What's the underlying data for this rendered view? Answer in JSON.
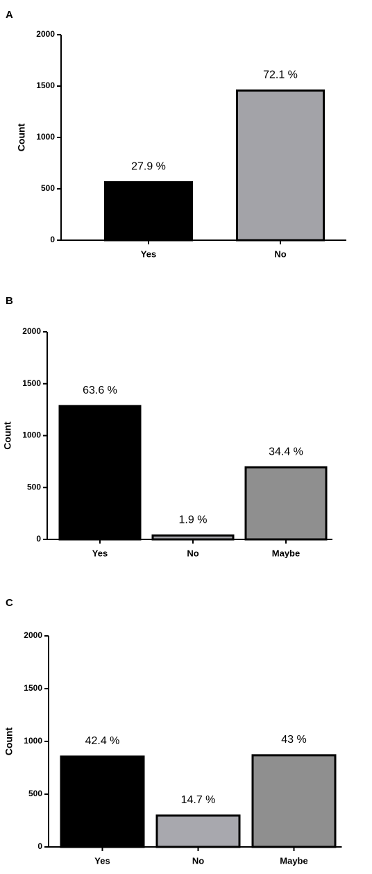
{
  "chart_data": [
    {
      "type": "bar",
      "panel": "A",
      "ylabel": "Count",
      "categories": [
        "Yes",
        "No"
      ],
      "values": [
        564,
        1457
      ],
      "annotations": [
        "27.9 %",
        "72.1 %"
      ],
      "colors": [
        "#000000",
        "#a3a3a8"
      ],
      "ylim": [
        0,
        2000
      ],
      "yticks": [
        0,
        500,
        1000,
        1500,
        2000
      ]
    },
    {
      "type": "bar",
      "panel": "B",
      "ylabel": "Count",
      "categories": [
        "Yes",
        "No",
        "Maybe"
      ],
      "values": [
        1285,
        38,
        695
      ],
      "annotations": [
        "63.6 %",
        "1.9 %",
        "34.4 %"
      ],
      "colors": [
        "#000000",
        "#a3a3a8",
        "#8f8f8f"
      ],
      "ylim": [
        0,
        2000
      ],
      "yticks": [
        0,
        500,
        1000,
        1500,
        2000
      ]
    },
    {
      "type": "bar",
      "panel": "C",
      "ylabel": "Count",
      "categories": [
        "Yes",
        "No",
        "Maybe"
      ],
      "values": [
        856,
        297,
        869
      ],
      "annotations": [
        "42.4 %",
        "14.7 %",
        "43 %"
      ],
      "colors": [
        "#000000",
        "#a8a8ae",
        "#8f8f8f"
      ],
      "ylim": [
        0,
        2000
      ],
      "yticks": [
        0,
        500,
        1000,
        1500,
        2000
      ]
    }
  ]
}
